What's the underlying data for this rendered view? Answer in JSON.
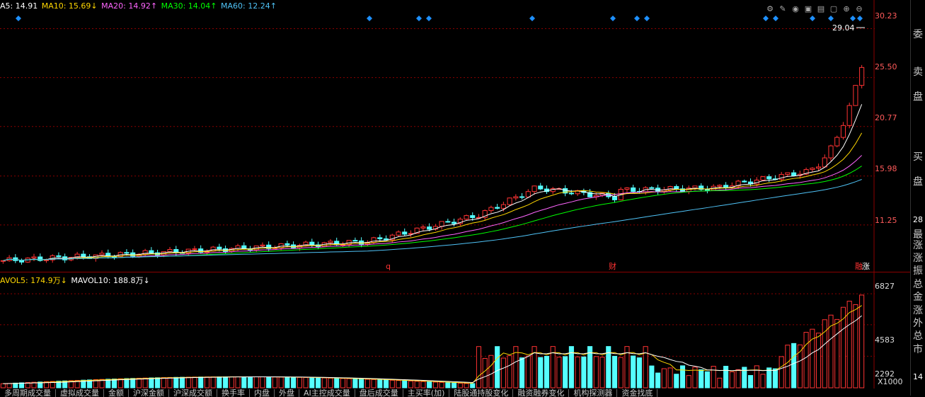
{
  "ma_bar": {
    "ma5": "A5: 14.91",
    "ma10": "MA10: 15.69↓",
    "ma20": "MA20: 14.92↑",
    "ma30": "MA30: 14.04↑",
    "ma60": "MA60: 12.24↑"
  },
  "colors": {
    "ma5": "#ffffff",
    "ma10": "#ffd700",
    "ma20": "#ff66ff",
    "ma30": "#00ff00",
    "ma60": "#4fc3f7",
    "up": "#ff3333",
    "down": "#55ffff",
    "grid": "#8b0000"
  },
  "price_axis": [
    "30.23",
    "25.50",
    "20.77",
    "15.98",
    "11.25"
  ],
  "price_range": [
    7.0,
    31.5
  ],
  "latest_price_label": "29.04",
  "vol_bar": {
    "mavol5": "AVOL5: 174.9万↓",
    "mavol10": "MAVOL10: 188.8万↓"
  },
  "vol_axis": [
    "6827",
    "4583",
    "2292"
  ],
  "vol_range": [
    0,
    7400
  ],
  "vol_unit": "X1000",
  "event_markers": {
    "q": "q",
    "cai": "财",
    "rong": "融",
    "zhang": "涨"
  },
  "right_panel": [
    "委",
    "卖",
    "盘",
    "买",
    "盘",
    "28",
    "最",
    "涨",
    "涨",
    "振",
    "总",
    "金",
    "涨",
    "外",
    "总",
    "市",
    "14"
  ],
  "tabs": [
    "多周期成交量",
    "虚拟成交量",
    "金额",
    "沪深金额",
    "沪深成交额",
    "换手率",
    "内盘",
    "外盘",
    "AI主控成交量",
    "盘后成交量",
    "主买率(加)",
    "陆股通持股变化",
    "融资融券变化",
    "机构探测器",
    "资金找底"
  ],
  "toolbar": [
    "settings-icon",
    "pen-icon",
    "eye-icon",
    "cart-icon",
    "print-icon",
    "lock-icon",
    "zoom-in-icon",
    "zoom-out-icon"
  ],
  "chart_data": {
    "type": "candlestick",
    "count": 140,
    "ohlc": [],
    "volume": [],
    "price_axis_ticks": [
      30.23,
      25.5,
      20.77,
      15.98,
      11.25
    ],
    "vol_axis_ticks": [
      6827,
      4583,
      2292
    ]
  }
}
